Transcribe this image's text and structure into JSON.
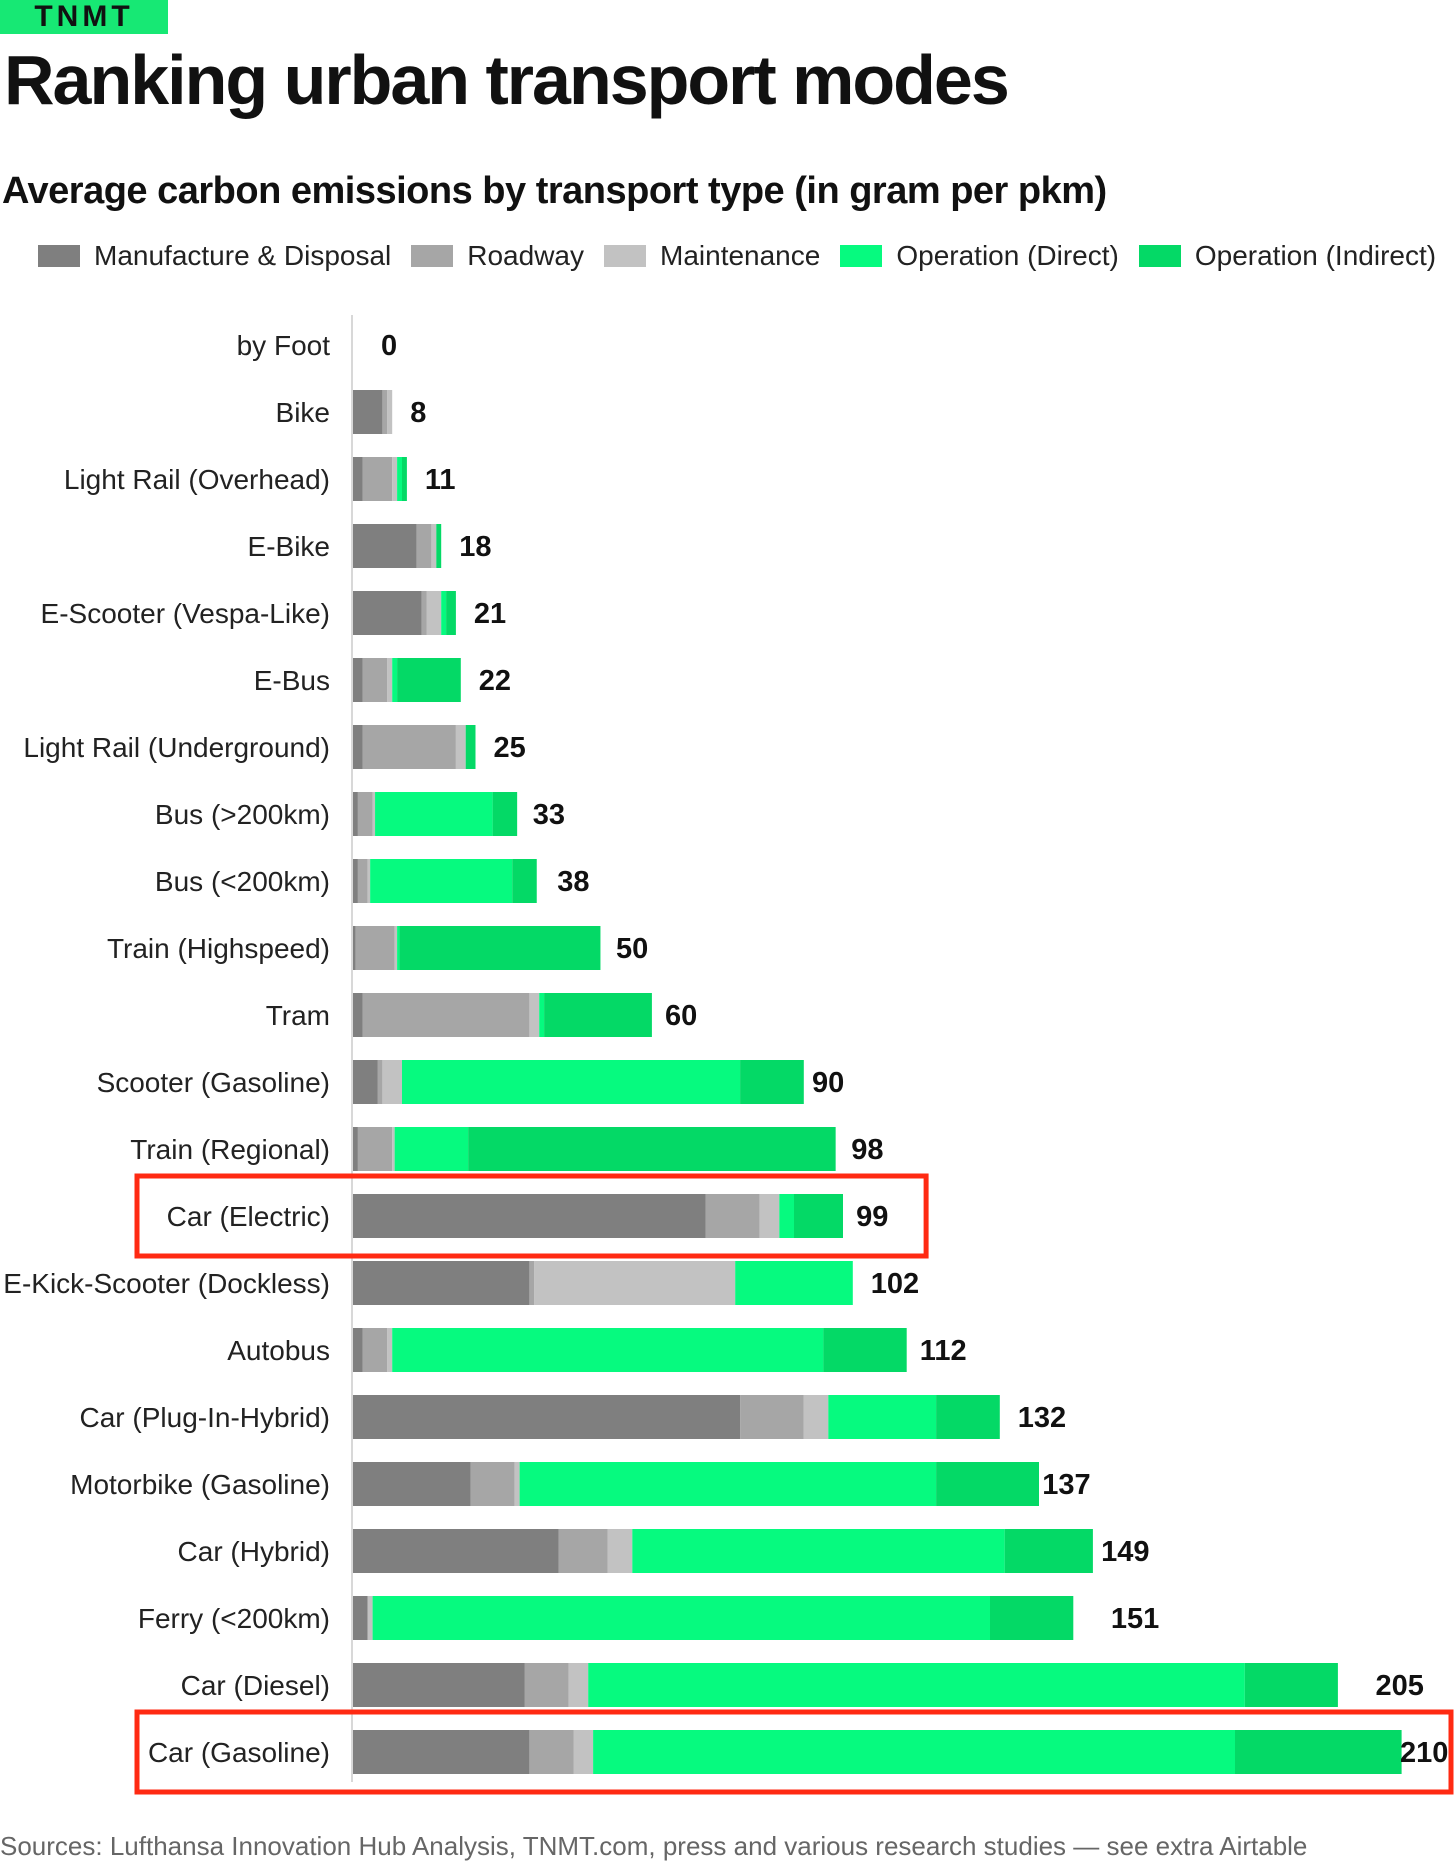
{
  "brand": "TNMT",
  "headline": "Ranking urban transport modes",
  "footer": "Sources: Lufthansa Innovation Hub Analysis, TNMT.com, press and various research studies — see extra Airtable",
  "colors": {
    "manufacture": "#7f7f7f",
    "roadway": "#a6a6a6",
    "maintenance": "#c2c2c2",
    "operation_direct": "#06fa7f",
    "operation_indirect": "#04d966",
    "highlight_box": "#ff2a12"
  },
  "chart_data": {
    "type": "bar",
    "orientation": "horizontal",
    "stacked": true,
    "title": "Average carbon emissions by transport type (in gram per pkm)",
    "legend_position": "top",
    "grid": false,
    "xlim": [
      0,
      210
    ],
    "categories": [
      "by Foot",
      "Bike",
      "Light Rail (Overhead)",
      "E-Bike",
      "E-Scooter (Vespa-Like)",
      "E-Bus",
      "Light Rail (Underground)",
      "Bus (>200km)",
      "Bus (<200km)",
      "Train (Highspeed)",
      "Tram",
      "Scooter (Gasoline)",
      "Train (Regional)",
      "Car (Electric)",
      "E-Kick-Scooter (Dockless)",
      "Autobus",
      "Car (Plug-In-Hybrid)",
      "Motorbike (Gasoline)",
      "Car (Hybrid)",
      "Ferry (<200km)",
      "Car (Diesel)",
      "Car (Gasoline)"
    ],
    "totals": [
      0,
      8,
      11,
      18,
      21,
      22,
      25,
      33,
      38,
      50,
      60,
      90,
      98,
      99,
      102,
      112,
      132,
      137,
      149,
      151,
      205,
      210
    ],
    "series": [
      {
        "name": "Manufacture & Disposal",
        "color_key": "manufacture",
        "values": [
          0,
          6,
          2,
          13,
          14,
          2,
          2,
          1,
          1,
          0.5,
          2,
          5,
          1,
          72,
          36,
          2,
          79,
          24,
          42,
          3,
          35,
          36
        ]
      },
      {
        "name": "Roadway",
        "color_key": "roadway",
        "values": [
          0,
          1,
          6,
          3,
          1,
          5,
          19,
          3,
          2,
          8,
          34,
          1,
          7,
          11,
          1,
          5,
          13,
          9,
          10,
          0,
          9,
          9
        ]
      },
      {
        "name": "Maintenance",
        "color_key": "maintenance",
        "values": [
          0,
          1,
          1,
          1,
          3,
          1,
          2,
          0.5,
          0.5,
          0.5,
          2,
          4,
          0.5,
          4,
          41,
          1,
          5,
          1,
          5,
          1,
          4,
          4
        ]
      },
      {
        "name": "Operation (Direct)",
        "color_key": "operation_direct",
        "values": [
          0,
          0,
          1,
          0,
          1,
          1,
          0,
          24,
          29,
          0.5,
          1,
          69,
          15,
          3,
          24,
          88,
          22,
          85,
          76,
          126,
          134,
          131
        ]
      },
      {
        "name": "Operation (Indirect)",
        "color_key": "operation_indirect",
        "values": [
          0,
          0,
          1,
          1,
          2,
          13,
          2,
          5,
          5,
          41,
          22,
          13,
          75,
          10,
          0,
          17,
          13,
          21,
          18,
          17,
          19,
          34
        ]
      }
    ],
    "highlighted": [
      "Car (Electric)",
      "Car (Gasoline)"
    ]
  }
}
